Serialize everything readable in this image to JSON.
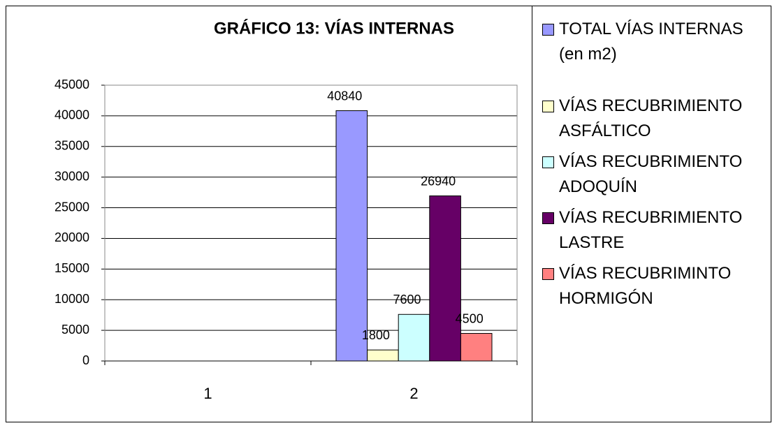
{
  "chart_data": {
    "type": "bar",
    "title": "GRÁFICO 13: VÍAS INTERNAS",
    "categories": [
      "1",
      "2"
    ],
    "series": [
      {
        "name": "TOTAL VÍAS INTERNAS (en m2)",
        "color": "#9999ff",
        "values": [
          null,
          40840
        ]
      },
      {
        "name": "VÍAS RECUBRIMIENTO ASFÁLTICO",
        "color": "#ffffcc",
        "values": [
          null,
          1800
        ]
      },
      {
        "name": "VÍAS RECUBRIMIENTO ADOQUÍN",
        "color": "#ccffff",
        "values": [
          null,
          7600
        ]
      },
      {
        "name": "VÍAS RECUBRIMIENTO LASTRE",
        "color": "#660066",
        "values": [
          null,
          26940
        ]
      },
      {
        "name": "VÍAS RECUBRIMINTO HORMIGÓN",
        "color": "#ff8080",
        "values": [
          null,
          4500
        ]
      }
    ],
    "ylim": [
      0,
      45000
    ],
    "yticks": [
      0,
      5000,
      10000,
      15000,
      20000,
      25000,
      30000,
      35000,
      40000,
      45000
    ],
    "grid": true,
    "legend": "right"
  }
}
